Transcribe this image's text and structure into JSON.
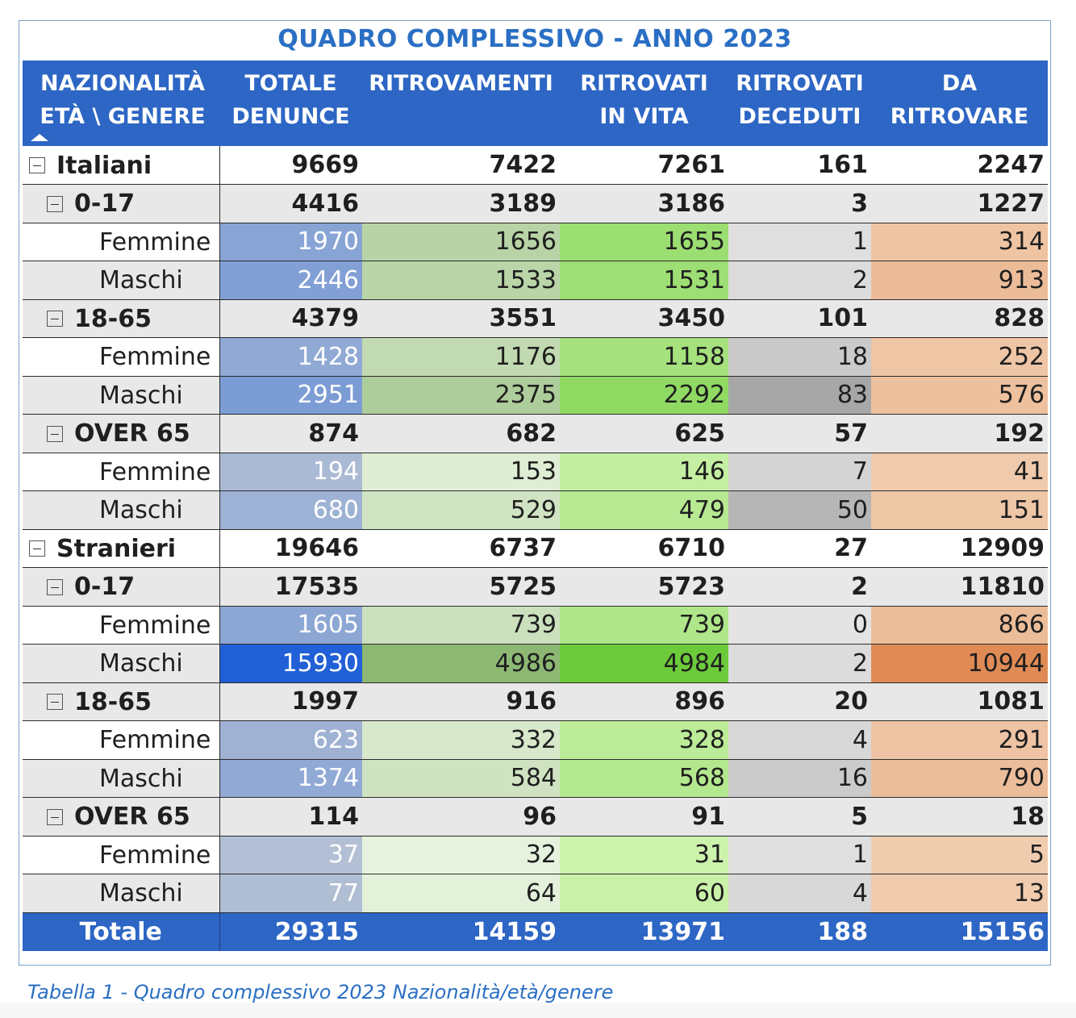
{
  "title": "QUADRO COMPLESSIVO - ANNO 2023",
  "headers": [
    [
      "NAZIONALITÀ",
      "ETÀ \\ GENERE"
    ],
    [
      "TOTALE",
      "DENUNCE"
    ],
    [
      "RITROVAMENTI",
      ""
    ],
    [
      "RITROVATI",
      "IN VITA"
    ],
    [
      "RITROVATI",
      "DECEDUTI"
    ],
    [
      "DA",
      "RITROVARE"
    ]
  ],
  "colors": {
    "header_bg": "#2d66c4",
    "title_color": "#2a6fc4",
    "denunce_scale": [
      "#b8c3d4",
      "#2160d6"
    ],
    "ritrovamenti_scale": [
      "#ecf6e4",
      "#8db874"
    ],
    "vita_scale": [
      "#d3f5b3",
      "#6ccb3a"
    ],
    "deceduti_scale": [
      "#e4e4e4",
      "#a7a7a7"
    ],
    "ritrovare_scale": [
      "#f0cdb0",
      "#e08b55"
    ]
  },
  "rows": [
    {
      "type": "nat",
      "label": "Italiani",
      "values": [
        "9669",
        "7422",
        "7261",
        "161",
        "2247"
      ]
    },
    {
      "type": "age",
      "label": "0-17",
      "values": [
        "4416",
        "3189",
        "3186",
        "3",
        "1227"
      ]
    },
    {
      "type": "g",
      "label": "Femmine",
      "values": [
        "1970",
        "1656",
        "1655",
        "1",
        "314"
      ]
    },
    {
      "type": "g",
      "label": "Maschi",
      "values": [
        "2446",
        "1533",
        "1531",
        "2",
        "913"
      ]
    },
    {
      "type": "age",
      "label": "18-65",
      "values": [
        "4379",
        "3551",
        "3450",
        "101",
        "828"
      ]
    },
    {
      "type": "g",
      "label": "Femmine",
      "values": [
        "1428",
        "1176",
        "1158",
        "18",
        "252"
      ]
    },
    {
      "type": "g",
      "label": "Maschi",
      "values": [
        "2951",
        "2375",
        "2292",
        "83",
        "576"
      ]
    },
    {
      "type": "age",
      "label": "OVER 65",
      "values": [
        "874",
        "682",
        "625",
        "57",
        "192"
      ]
    },
    {
      "type": "g",
      "label": "Femmine",
      "values": [
        "194",
        "153",
        "146",
        "7",
        "41"
      ]
    },
    {
      "type": "g",
      "label": "Maschi",
      "values": [
        "680",
        "529",
        "479",
        "50",
        "151"
      ]
    },
    {
      "type": "nat",
      "label": "Stranieri",
      "values": [
        "19646",
        "6737",
        "6710",
        "27",
        "12909"
      ]
    },
    {
      "type": "age",
      "label": "0-17",
      "values": [
        "17535",
        "5725",
        "5723",
        "2",
        "11810"
      ]
    },
    {
      "type": "g",
      "label": "Femmine",
      "values": [
        "1605",
        "739",
        "739",
        "0",
        "866"
      ]
    },
    {
      "type": "g",
      "label": "Maschi",
      "values": [
        "15930",
        "4986",
        "4984",
        "2",
        "10944"
      ]
    },
    {
      "type": "age",
      "label": "18-65",
      "values": [
        "1997",
        "916",
        "896",
        "20",
        "1081"
      ]
    },
    {
      "type": "g",
      "label": "Femmine",
      "values": [
        "623",
        "332",
        "328",
        "4",
        "291"
      ]
    },
    {
      "type": "g",
      "label": "Maschi",
      "values": [
        "1374",
        "584",
        "568",
        "16",
        "790"
      ]
    },
    {
      "type": "age",
      "label": "OVER 65",
      "values": [
        "114",
        "96",
        "91",
        "5",
        "18"
      ]
    },
    {
      "type": "g",
      "label": "Femmine",
      "values": [
        "37",
        "32",
        "31",
        "1",
        "5"
      ]
    },
    {
      "type": "g",
      "label": "Maschi",
      "values": [
        "77",
        "64",
        "60",
        "4",
        "13"
      ]
    }
  ],
  "total": {
    "label": "Totale",
    "values": [
      "29315",
      "14159",
      "13971",
      "188",
      "15156"
    ]
  },
  "caption": "Tabella 1 - Quadro complessivo 2023 Nazionalità/età/genere"
}
